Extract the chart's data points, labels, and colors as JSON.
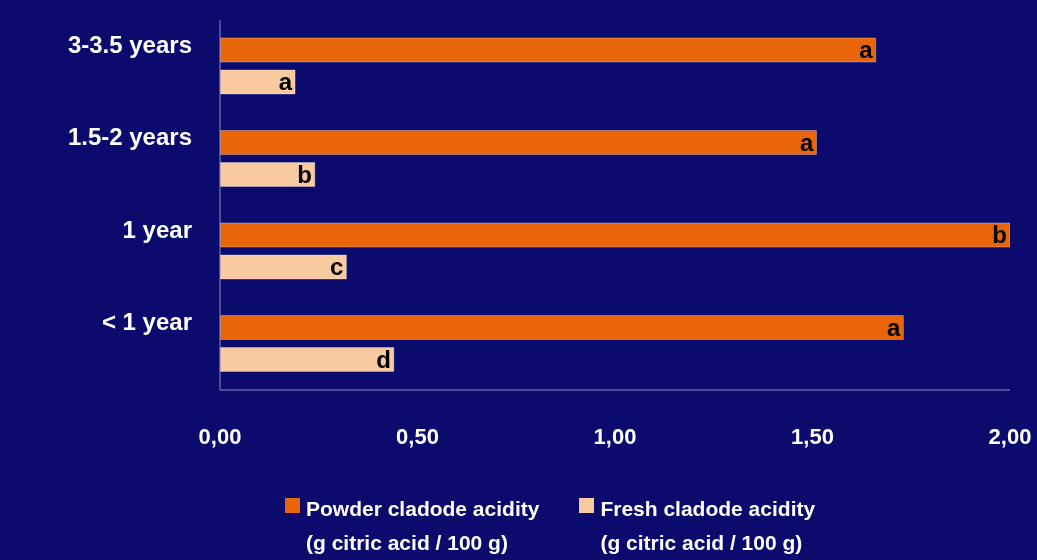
{
  "chart_data": {
    "type": "bar",
    "orientation": "horizontal",
    "categories": [
      "3-3.5 years",
      "1.5-2 years",
      "1 year",
      "< 1 year"
    ],
    "series": [
      {
        "name": "Powder cladode acidity\n(g citric acid / 100 g)",
        "color": "#e8650a",
        "values": [
          1.66,
          1.51,
          2.0,
          1.73
        ],
        "value_labels": [
          "a",
          "a",
          "b",
          "a"
        ]
      },
      {
        "name": "Fresh cladode acidity\n(g citric acid / 100 g)",
        "color": "#f9c9a0",
        "values": [
          0.19,
          0.24,
          0.32,
          0.44
        ],
        "value_labels": [
          "a",
          "b",
          "c",
          "d"
        ]
      }
    ],
    "xlim": [
      0,
      2
    ],
    "xticks": [
      {
        "value": 0,
        "label": "0,00"
      },
      {
        "value": 0.5,
        "label": "0,50"
      },
      {
        "value": 1,
        "label": "1,00"
      },
      {
        "value": 1.5,
        "label": "1,50"
      },
      {
        "value": 2,
        "label": "2,00"
      }
    ],
    "legend": "bottom"
  }
}
